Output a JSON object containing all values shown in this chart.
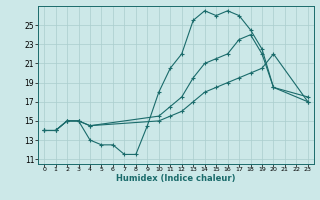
{
  "title": "",
  "xlabel": "Humidex (Indice chaleur)",
  "ylabel": "",
  "bg_color": "#cce8e8",
  "line_color": "#1a6b6b",
  "grid_color": "#aacece",
  "xlim": [
    -0.5,
    23.5
  ],
  "ylim": [
    10.5,
    27.0
  ],
  "xticks": [
    0,
    1,
    2,
    3,
    4,
    5,
    6,
    7,
    8,
    9,
    10,
    11,
    12,
    13,
    14,
    15,
    16,
    17,
    18,
    19,
    20,
    21,
    22,
    23
  ],
  "yticks": [
    11,
    13,
    15,
    17,
    19,
    21,
    23,
    25
  ],
  "line1_x": [
    0,
    1,
    2,
    3,
    4,
    5,
    6,
    7,
    8,
    9,
    10,
    11,
    12,
    13,
    14,
    15,
    16,
    17,
    18,
    19,
    20,
    23
  ],
  "line1_y": [
    14.0,
    14.0,
    15.0,
    15.0,
    13.0,
    12.5,
    12.5,
    11.5,
    11.5,
    14.5,
    18.0,
    20.5,
    22.0,
    25.5,
    26.5,
    26.0,
    26.5,
    26.0,
    24.5,
    22.5,
    18.5,
    17.5
  ],
  "line2_x": [
    0,
    1,
    2,
    3,
    4,
    10,
    11,
    12,
    13,
    14,
    15,
    16,
    17,
    18,
    19,
    20,
    23
  ],
  "line2_y": [
    14.0,
    14.0,
    15.0,
    15.0,
    14.5,
    15.0,
    15.5,
    16.0,
    17.0,
    18.0,
    18.5,
    19.0,
    19.5,
    20.0,
    20.5,
    22.0,
    17.0
  ],
  "line3_x": [
    0,
    1,
    2,
    3,
    4,
    10,
    11,
    12,
    13,
    14,
    15,
    16,
    17,
    18,
    19,
    20,
    23
  ],
  "line3_y": [
    14.0,
    14.0,
    15.0,
    15.0,
    14.5,
    15.5,
    16.5,
    17.5,
    19.5,
    21.0,
    21.5,
    22.0,
    23.5,
    24.0,
    22.0,
    18.5,
    17.0
  ]
}
